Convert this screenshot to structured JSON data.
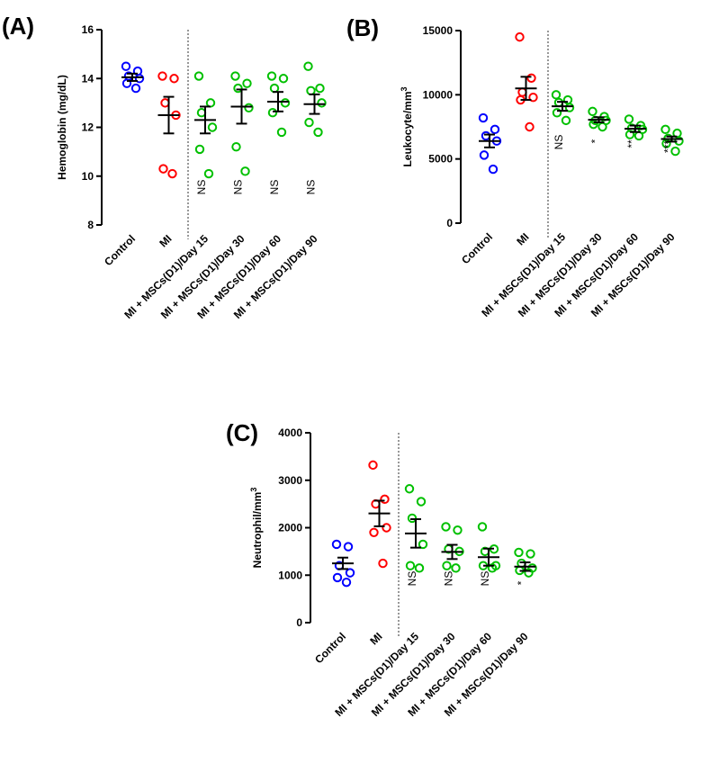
{
  "colors": {
    "control": "#0000ff",
    "mi": "#ff0000",
    "treated": "#00c000"
  },
  "categories": [
    "Control",
    "MI",
    "MI + MSCs(D1)/Day 15",
    "MI + MSCs(D1)/Day 30",
    "MI + MSCs(D1)/Day 60",
    "MI + MSCs(D1)/Day 90"
  ],
  "chart_data": [
    {
      "panel": "(A)",
      "type": "scatter",
      "ylabel": "Hemoglobin (mg/dL)",
      "ylabel_sup": "",
      "ylim": [
        8,
        16
      ],
      "yticks": [
        8,
        10,
        12,
        14,
        16
      ],
      "ytick_labels": [
        "8",
        "10",
        "12",
        "14",
        "16"
      ],
      "points": [
        [
          14.5,
          14.3,
          14.1,
          14.0,
          13.8,
          13.6
        ],
        [
          14.1,
          14.0,
          13.0,
          12.5,
          10.3,
          10.1
        ],
        [
          14.1,
          13.0,
          12.6,
          12.0,
          11.1,
          10.1
        ],
        [
          14.1,
          13.8,
          13.6,
          12.8,
          11.2,
          10.2
        ],
        [
          14.1,
          14.0,
          13.6,
          13.0,
          12.6,
          11.8
        ],
        [
          14.5,
          13.6,
          13.5,
          13.0,
          12.2,
          11.8
        ]
      ],
      "mean": [
        14.05,
        12.5,
        12.3,
        12.85,
        13.05,
        12.95
      ],
      "sem": [
        0.15,
        0.75,
        0.55,
        0.7,
        0.4,
        0.4
      ],
      "significance": [
        "",
        "",
        "NS",
        "NS",
        "NS",
        "NS"
      ]
    },
    {
      "panel": "(B)",
      "type": "scatter",
      "ylabel": "Leukocyte/mm",
      "ylabel_sup": "3",
      "ylim": [
        0,
        15000
      ],
      "yticks": [
        0,
        5000,
        10000,
        15000
      ],
      "ytick_labels": [
        "0",
        "5000",
        "10000",
        "15000"
      ],
      "points": [
        [
          8200,
          7300,
          6800,
          6400,
          5300,
          4200
        ],
        [
          14500,
          11300,
          10200,
          9800,
          9600,
          7500
        ],
        [
          10000,
          9600,
          9400,
          9000,
          8600,
          8000
        ],
        [
          8700,
          8300,
          8000,
          8000,
          7700,
          7500
        ],
        [
          8100,
          7600,
          7400,
          7300,
          6900,
          6800
        ],
        [
          7300,
          7000,
          6600,
          6400,
          6200,
          5600
        ]
      ],
      "mean": [
        6400,
        10500,
        9100,
        8050,
        7350,
        6550
      ],
      "sem": [
        500,
        900,
        350,
        200,
        250,
        200
      ],
      "significance": [
        "",
        "",
        "NS",
        "*",
        "**",
        "***"
      ]
    },
    {
      "panel": "(C)",
      "type": "scatter",
      "ylabel": "Neutrophil/mm",
      "ylabel_sup": "3",
      "ylim": [
        0,
        4000
      ],
      "yticks": [
        0,
        1000,
        2000,
        3000,
        4000
      ],
      "ytick_labels": [
        "0",
        "1000",
        "2000",
        "3000",
        "4000"
      ],
      "points": [
        [
          1650,
          1600,
          1200,
          1050,
          950,
          850
        ],
        [
          3320,
          2600,
          2500,
          2000,
          1900,
          1250
        ],
        [
          2820,
          2550,
          2200,
          1650,
          1200,
          1150
        ],
        [
          2020,
          1950,
          1550,
          1500,
          1200,
          1150
        ],
        [
          2020,
          1550,
          1500,
          1200,
          1200,
          1150
        ],
        [
          1480,
          1450,
          1250,
          1150,
          1100,
          1050
        ]
      ],
      "mean": [
        1250,
        2300,
        1880,
        1490,
        1380,
        1180
      ],
      "sem": [
        120,
        270,
        300,
        150,
        180,
        90
      ],
      "significance": [
        "",
        "",
        "NS",
        "NS",
        "NS",
        "*"
      ]
    }
  ]
}
